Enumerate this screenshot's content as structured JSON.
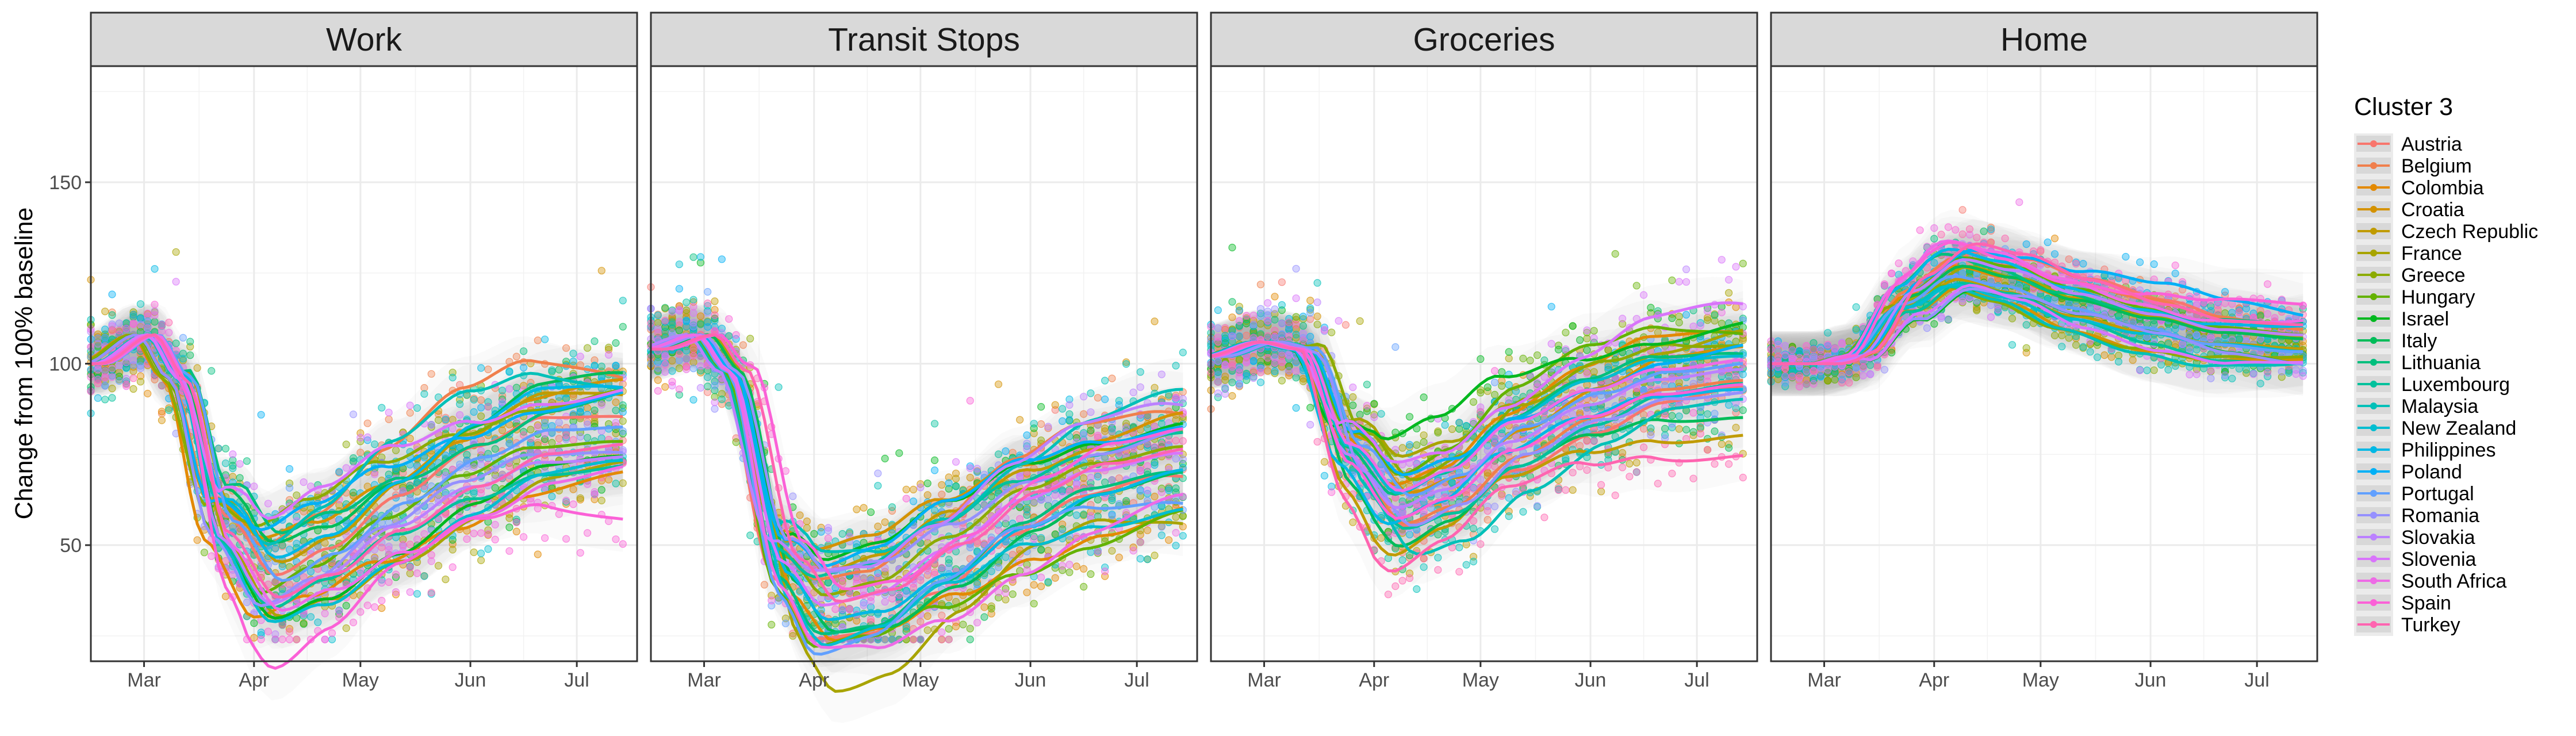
{
  "chart_data": {
    "type": "scatter",
    "facets": [
      "Work",
      "Transit Stops",
      "Groceries",
      "Home"
    ],
    "ylabel": "Change from 100% baseline",
    "ylim": [
      18,
      182
    ],
    "y_ticks": [
      50,
      100,
      150
    ],
    "x_range": [
      "2020-02-15",
      "2020-07-18"
    ],
    "x_ticks": [
      {
        "label": "Mar",
        "date": "2020-03-01"
      },
      {
        "label": "Apr",
        "date": "2020-04-01"
      },
      {
        "label": "May",
        "date": "2020-05-01"
      },
      {
        "label": "Jun",
        "date": "2020-06-01"
      },
      {
        "label": "Jul",
        "date": "2020-07-01"
      }
    ],
    "grid": true,
    "legend_position": "right",
    "legend_title": "Cluster 3",
    "series": [
      {
        "name": "Austria",
        "color": "#F8766D"
      },
      {
        "name": "Belgium",
        "color": "#F07F4C"
      },
      {
        "name": "Colombia",
        "color": "#E38900"
      },
      {
        "name": "Croatia",
        "color": "#D49200"
      },
      {
        "name": "Czech Republic",
        "color": "#C09B00"
      },
      {
        "name": "France",
        "color": "#A8A400"
      },
      {
        "name": "Greece",
        "color": "#8CAB00"
      },
      {
        "name": "Hungary",
        "color": "#64B200"
      },
      {
        "name": "Israel",
        "color": "#00B81F"
      },
      {
        "name": "Italy",
        "color": "#00BC59"
      },
      {
        "name": "Lithuania",
        "color": "#00BF7D"
      },
      {
        "name": "Luxembourg",
        "color": "#00C19C"
      },
      {
        "name": "Malaysia",
        "color": "#00C0B8"
      },
      {
        "name": "New Zealand",
        "color": "#00BDD0"
      },
      {
        "name": "Philippines",
        "color": "#00B8E5"
      },
      {
        "name": "Poland",
        "color": "#00B0F6"
      },
      {
        "name": "Portugal",
        "color": "#61A0FF"
      },
      {
        "name": "Romania",
        "color": "#9590FF"
      },
      {
        "name": "Slovakia",
        "color": "#BB81FF"
      },
      {
        "name": "Slovenia",
        "color": "#D974FB"
      },
      {
        "name": "South Africa",
        "color": "#EE6BE6"
      },
      {
        "name": "Spain",
        "color": "#FB61D7"
      },
      {
        "name": "Turkey",
        "color": "#FF64B0"
      }
    ],
    "panels": [
      {
        "facet": "Work",
        "trend_knots": [
          {
            "date": "2020-02-15",
            "value": 100
          },
          {
            "date": "2020-03-01",
            "value": 108
          },
          {
            "date": "2020-03-10",
            "value": 96
          },
          {
            "date": "2020-03-22",
            "value": 55
          },
          {
            "date": "2020-04-05",
            "value": 38
          },
          {
            "date": "2020-04-20",
            "value": 45
          },
          {
            "date": "2020-05-10",
            "value": 58
          },
          {
            "date": "2020-06-01",
            "value": 70
          },
          {
            "date": "2020-06-20",
            "value": 78
          },
          {
            "date": "2020-07-15",
            "value": 80
          }
        ]
      },
      {
        "facet": "Transit Stops",
        "trend_knots": [
          {
            "date": "2020-02-15",
            "value": 104
          },
          {
            "date": "2020-03-01",
            "value": 108
          },
          {
            "date": "2020-03-10",
            "value": 98
          },
          {
            "date": "2020-03-25",
            "value": 45
          },
          {
            "date": "2020-04-05",
            "value": 33
          },
          {
            "date": "2020-04-20",
            "value": 36
          },
          {
            "date": "2020-05-10",
            "value": 48
          },
          {
            "date": "2020-06-01",
            "value": 62
          },
          {
            "date": "2020-06-20",
            "value": 70
          },
          {
            "date": "2020-07-15",
            "value": 75
          }
        ]
      },
      {
        "facet": "Groceries",
        "trend_knots": [
          {
            "date": "2020-02-15",
            "value": 102
          },
          {
            "date": "2020-03-01",
            "value": 106
          },
          {
            "date": "2020-03-12",
            "value": 104
          },
          {
            "date": "2020-03-25",
            "value": 75
          },
          {
            "date": "2020-04-08",
            "value": 60
          },
          {
            "date": "2020-04-22",
            "value": 65
          },
          {
            "date": "2020-05-10",
            "value": 78
          },
          {
            "date": "2020-06-01",
            "value": 88
          },
          {
            "date": "2020-06-20",
            "value": 95
          },
          {
            "date": "2020-07-15",
            "value": 98
          }
        ]
      },
      {
        "facet": "Home",
        "trend_knots": [
          {
            "date": "2020-02-15",
            "value": 100
          },
          {
            "date": "2020-03-01",
            "value": 100
          },
          {
            "date": "2020-03-10",
            "value": 102
          },
          {
            "date": "2020-03-25",
            "value": 118
          },
          {
            "date": "2020-04-08",
            "value": 126
          },
          {
            "date": "2020-04-22",
            "value": 123
          },
          {
            "date": "2020-05-10",
            "value": 117
          },
          {
            "date": "2020-06-01",
            "value": 112
          },
          {
            "date": "2020-06-20",
            "value": 108
          },
          {
            "date": "2020-07-15",
            "value": 106
          }
        ]
      }
    ]
  }
}
